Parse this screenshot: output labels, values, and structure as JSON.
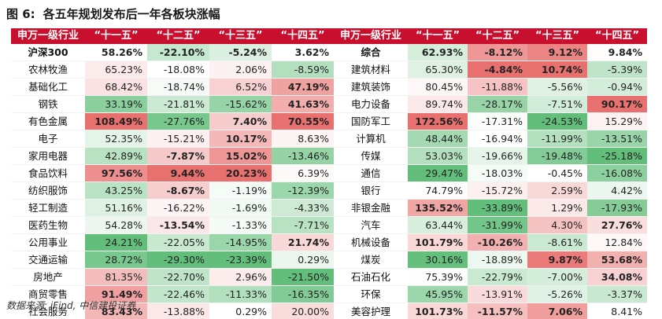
{
  "title": {
    "fig": "图 6:",
    "text": "各五年规划发布后一年各板块涨幅"
  },
  "headers": [
    "申万一级行业",
    "“十一五”",
    "“十二五”",
    "“十三五”",
    "“十四五”",
    "申万一级行业",
    "“十一五”",
    "“十二五”",
    "“十三五”",
    "“十四五”"
  ],
  "left": [
    {
      "name": "沪深300",
      "v": [
        "58.26%",
        "-22.10%",
        "-5.24%",
        "3.62%"
      ]
    },
    {
      "name": "农林牧渔",
      "v": [
        "65.23%",
        "-18.08%",
        "2.06%",
        "-8.59%"
      ]
    },
    {
      "name": "基础化工",
      "v": [
        "68.42%",
        "-18.74%",
        "6.52%",
        "47.19%"
      ]
    },
    {
      "name": "钢铁",
      "v": [
        "33.19%",
        "-21.81%",
        "-15.62%",
        "41.63%"
      ]
    },
    {
      "name": "有色金属",
      "v": [
        "108.49%",
        "-27.76%",
        "7.40%",
        "70.55%"
      ]
    },
    {
      "name": "电子",
      "v": [
        "52.35%",
        "-15.21%",
        "10.17%",
        "8.63%"
      ]
    },
    {
      "name": "家用电器",
      "v": [
        "42.89%",
        "-7.87%",
        "15.02%",
        "-13.46%"
      ]
    },
    {
      "name": "食品饮料",
      "v": [
        "97.56%",
        "9.44%",
        "20.23%",
        "6.39%"
      ]
    },
    {
      "name": "纺织服饰",
      "v": [
        "43.25%",
        "-8.67%",
        "-1.19%",
        "-12.39%"
      ]
    },
    {
      "name": "轻工制造",
      "v": [
        "51.16%",
        "-16.22%",
        "-1.69%",
        "-4.33%"
      ]
    },
    {
      "name": "医药生物",
      "v": [
        "54.28%",
        "-13.54%",
        "-1.33%",
        "-7.71%"
      ]
    },
    {
      "name": "公用事业",
      "v": [
        "24.21%",
        "-22.05%",
        "-14.95%",
        "21.74%"
      ]
    },
    {
      "name": "交通运输",
      "v": [
        "28.72%",
        "-29.30%",
        "-23.39%",
        "0.29%"
      ]
    },
    {
      "name": "房地产",
      "v": [
        "81.35%",
        "-22.70%",
        "2.96%",
        "-21.50%"
      ]
    },
    {
      "name": "商贸零售",
      "v": [
        "91.49%",
        "-22.46%",
        "-11.33%",
        "-16.35%"
      ]
    },
    {
      "name": "社会服务",
      "v": [
        "83.43%",
        "-13.88%",
        "0.29%",
        "20.00%"
      ]
    }
  ],
  "right": [
    {
      "name": "综合",
      "v": [
        "62.93%",
        "-8.12%",
        "9.12%",
        "9.84%"
      ]
    },
    {
      "name": "建筑材料",
      "v": [
        "65.30%",
        "-4.84%",
        "10.74%",
        "-5.39%"
      ]
    },
    {
      "name": "建筑装饰",
      "v": [
        "80.45%",
        "-11.88%",
        "-5.56%",
        "-0.94%"
      ]
    },
    {
      "name": "电力设备",
      "v": [
        "89.74%",
        "-28.17%",
        "-7.51%",
        "90.17%"
      ]
    },
    {
      "name": "国防军工",
      "v": [
        "172.56%",
        "-17.31%",
        "-24.53%",
        "15.29%"
      ]
    },
    {
      "name": "计算机",
      "v": [
        "48.44%",
        "-16.94%",
        "-11.99%",
        "-13.51%"
      ]
    },
    {
      "name": "传媒",
      "v": [
        "53.03%",
        "-19.66%",
        "-19.48%",
        "-25.18%"
      ]
    },
    {
      "name": "通信",
      "v": [
        "29.47%",
        "-18.03%",
        "-0.45%",
        "-16.08%"
      ]
    },
    {
      "name": "银行",
      "v": [
        "74.79%",
        "-15.72%",
        "2.59%",
        "4.42%"
      ]
    },
    {
      "name": "非银金融",
      "v": [
        "135.52%",
        "-33.89%",
        "1.29%",
        "-17.93%"
      ]
    },
    {
      "name": "汽车",
      "v": [
        "63.44%",
        "-31.99%",
        "4.30%",
        "27.76%"
      ]
    },
    {
      "name": "机械设备",
      "v": [
        "101.79%",
        "-10.26%",
        "-8.61%",
        "12.84%"
      ]
    },
    {
      "name": "煤炭",
      "v": [
        "30.16%",
        "-18.89%",
        "9.87%",
        "53.68%"
      ]
    },
    {
      "name": "石油石化",
      "v": [
        "75.39%",
        "-22.79%",
        "-7.00%",
        "34.08%"
      ]
    },
    {
      "name": "环保",
      "v": [
        "45.95%",
        "-13.91%",
        "-5.26%",
        "-3.37%"
      ]
    },
    {
      "name": "美容护理",
      "v": [
        "101.73%",
        "-11.57%",
        "7.06%",
        "8.41%"
      ]
    }
  ],
  "source": "数据来源: iFind, 中信建投证券",
  "colors": {
    "header": "#c8102e",
    "red": "#e8706f",
    "green": "#63be7b"
  }
}
